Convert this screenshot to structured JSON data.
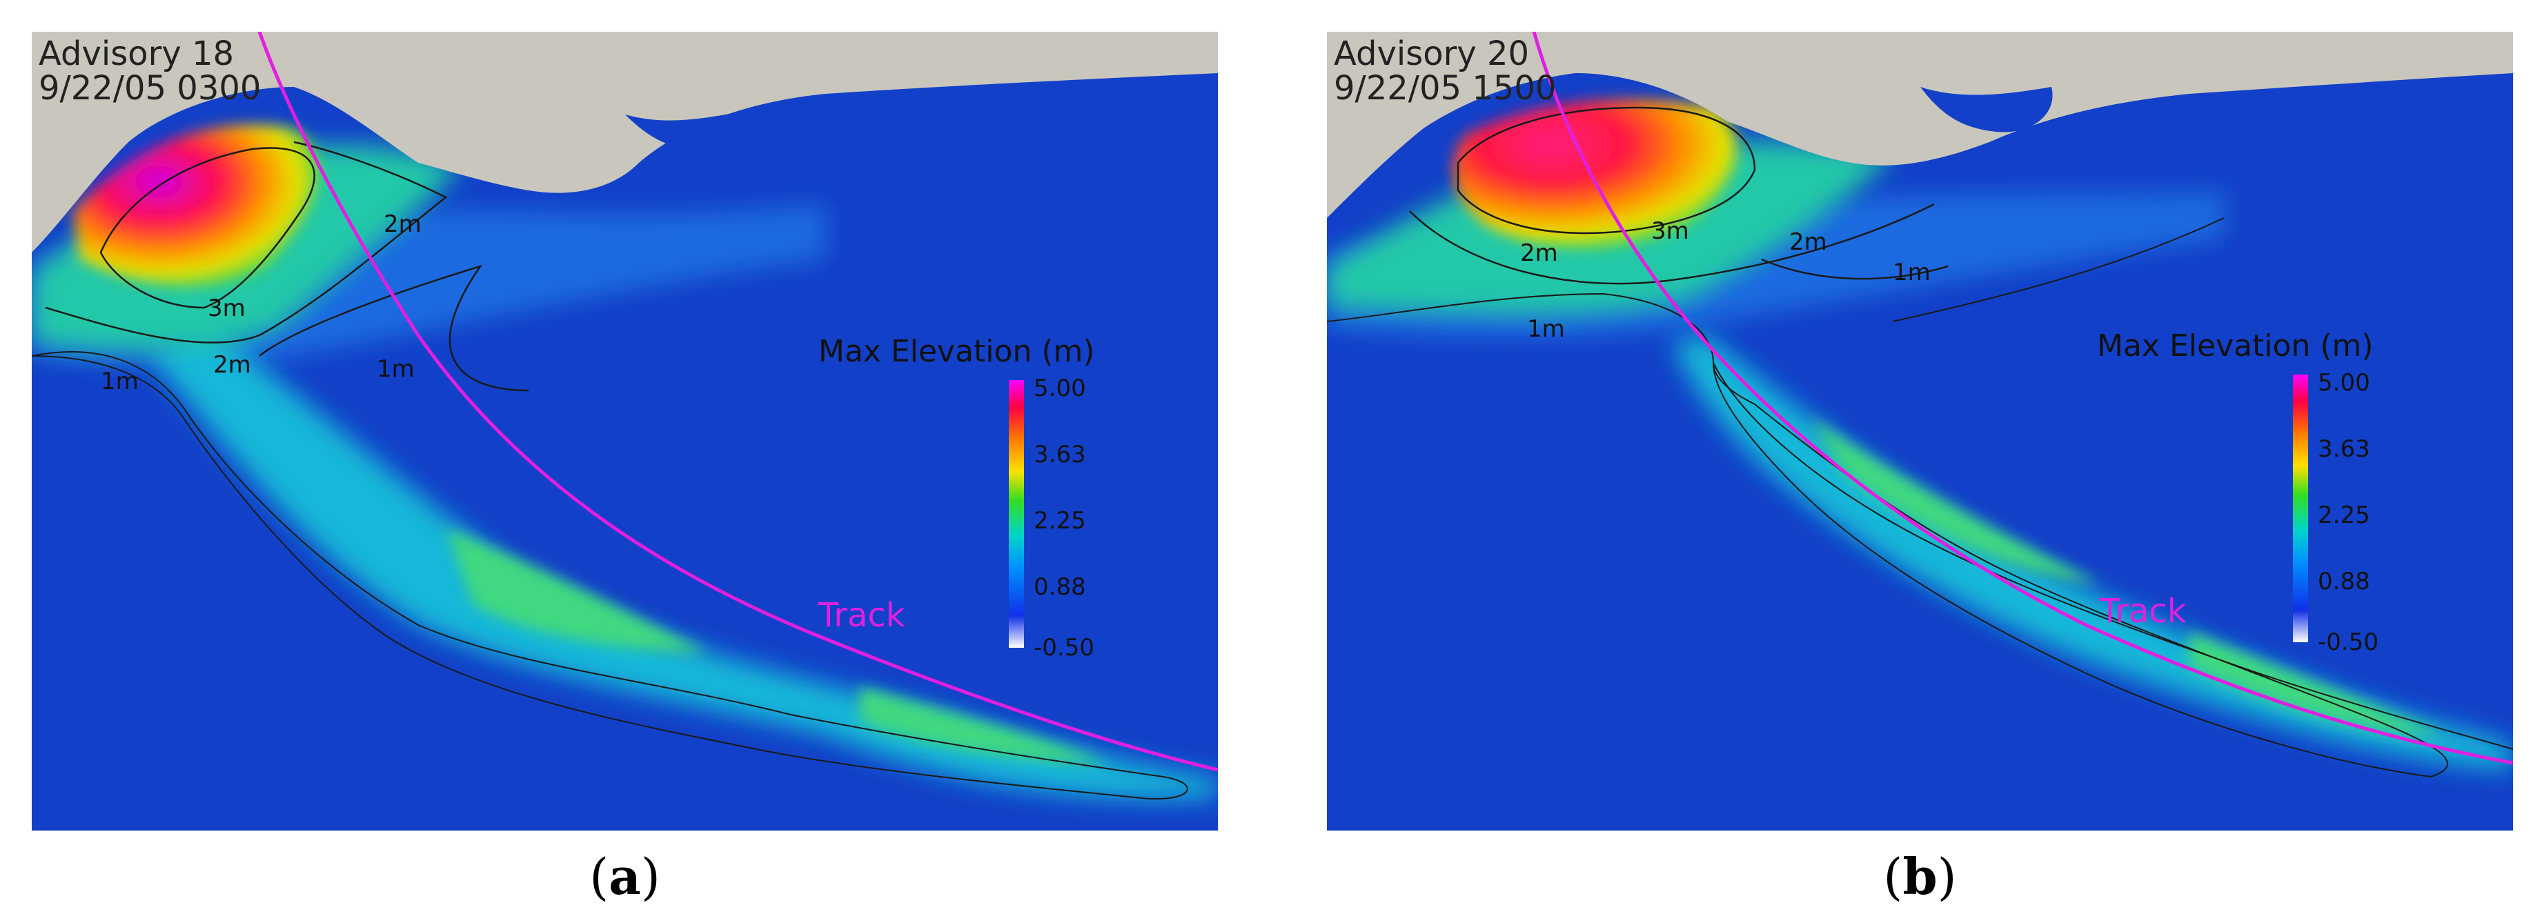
{
  "panels": [
    {
      "id": "a",
      "advisory": "Advisory 18",
      "datetime": "9/22/05 0300",
      "caption_letter": "a",
      "contour_labels": [
        "3m",
        "2m",
        "2m",
        "1m",
        "1m"
      ],
      "track_label": "Track"
    },
    {
      "id": "b",
      "advisory": "Advisory 20",
      "datetime": "9/22/05 1500",
      "caption_letter": "b",
      "contour_labels": [
        "3m",
        "2m",
        "2m",
        "1m",
        "1m"
      ],
      "track_label": "Track"
    }
  ],
  "legend": {
    "title": "Max Elevation (m)",
    "ticks": [
      "5.00",
      "3.63",
      "2.25",
      "0.88",
      "-0.50"
    ],
    "colors": [
      "#ff00ff",
      "#ff0044",
      "#ff7a00",
      "#ffe000",
      "#33dd22",
      "#00d6c8",
      "#0090ff",
      "#1030e8",
      "#ffffff"
    ]
  },
  "colors": {
    "ocean": "#1240c8",
    "land": "#c9c6bd",
    "track": "#e020e0",
    "contour": "#1a1a1a"
  }
}
